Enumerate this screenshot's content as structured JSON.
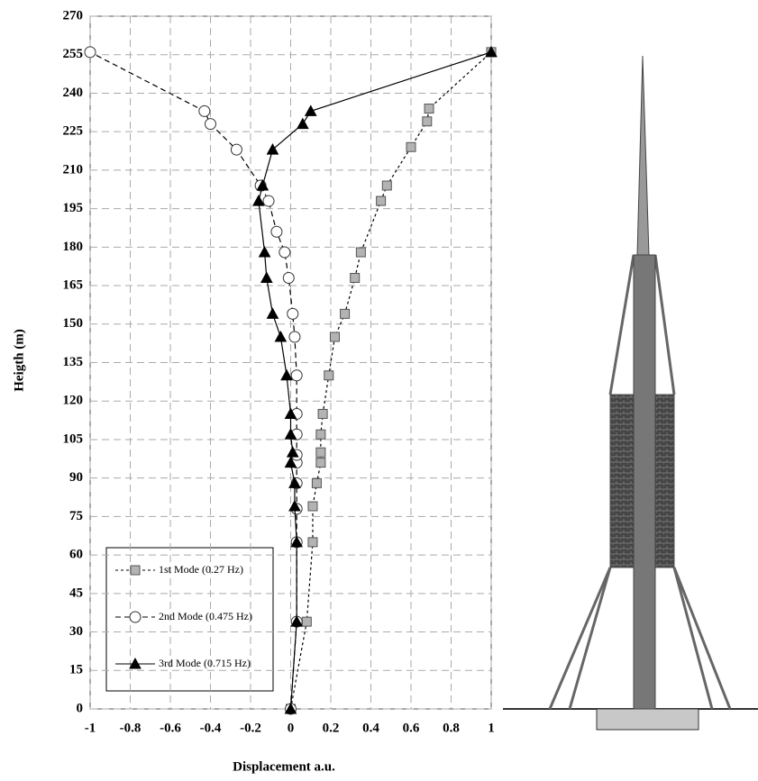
{
  "chart_data": {
    "type": "line",
    "x_label": "Displacement a.u.",
    "y_label": "Heigth (m)",
    "xlim": [
      -1,
      1
    ],
    "xticks": [
      -1,
      -0.8,
      -0.6,
      -0.4,
      -0.2,
      0,
      0.2,
      0.4,
      0.6,
      0.8,
      1
    ],
    "ylim": [
      0,
      270
    ],
    "yticks": [
      0,
      15,
      30,
      45,
      60,
      75,
      90,
      105,
      120,
      135,
      150,
      165,
      180,
      195,
      210,
      225,
      240,
      255,
      270
    ],
    "grid": true,
    "series": [
      {
        "name": "1st Mode (0.27 Hz)",
        "color": "#b3b3b3",
        "marker": "square",
        "dash": "3,3",
        "x": [
          0,
          0.08,
          0.11,
          0.11,
          0.13,
          0.15,
          0.15,
          0.15,
          0.16,
          0.19,
          0.22,
          0.27,
          0.32,
          0.35,
          0.45,
          0.48,
          0.6,
          0.68,
          0.69,
          1
        ],
        "y": [
          0,
          34,
          65,
          79,
          88,
          96,
          100,
          107,
          115,
          130,
          145,
          154,
          168,
          178,
          198,
          204,
          219,
          229,
          234,
          256
        ]
      },
      {
        "name": "2nd Mode (0.475 Hz)",
        "color": "#ffffff",
        "marker": "circle",
        "dash": "6,4",
        "x": [
          0,
          0.03,
          0.03,
          0.03,
          0.03,
          0.03,
          0.03,
          0.03,
          0.03,
          0.03,
          0.02,
          0.01,
          -0.01,
          -0.03,
          -0.07,
          -0.11,
          -0.15,
          -0.27,
          -0.4,
          -0.43,
          -1
        ],
        "y": [
          0,
          34,
          65,
          78,
          88,
          96,
          99,
          107,
          115,
          130,
          145,
          154,
          168,
          178,
          186,
          198,
          204,
          218,
          228,
          233,
          256
        ]
      },
      {
        "name": "3rd Mode (0.715 Hz)",
        "color": "#000000",
        "marker": "triangle",
        "dash": "none",
        "x": [
          0,
          0.03,
          0.03,
          0.02,
          0.02,
          0,
          0.01,
          0,
          0,
          -0.02,
          -0.05,
          -0.09,
          -0.12,
          -0.13,
          -0.16,
          -0.14,
          -0.09,
          0.06,
          0.1,
          1
        ],
        "y": [
          0,
          34,
          65,
          79,
          88,
          96,
          100,
          107,
          115,
          130,
          145,
          154,
          168,
          178,
          198,
          204,
          218,
          228,
          233,
          256
        ]
      }
    ]
  }
}
